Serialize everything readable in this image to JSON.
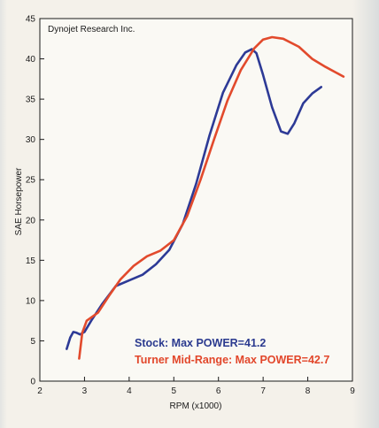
{
  "chart_data": {
    "type": "line",
    "title": "",
    "watermark": "Dynojet Research Inc.",
    "xlabel": "RPM (x1000)",
    "ylabel": "SAE Horsepower",
    "xlim": [
      2,
      9
    ],
    "ylim": [
      0,
      45
    ],
    "x_ticks": [
      2,
      3,
      4,
      5,
      6,
      7,
      8,
      9
    ],
    "y_ticks": [
      0,
      5,
      10,
      15,
      20,
      25,
      30,
      35,
      40,
      45
    ],
    "grid": false,
    "series": [
      {
        "name": "Stock",
        "color": "#2d3a96",
        "points": [
          [
            2.6,
            4.0
          ],
          [
            2.68,
            5.4
          ],
          [
            2.75,
            6.1
          ],
          [
            2.82,
            6.0
          ],
          [
            2.9,
            5.8
          ],
          [
            3.0,
            6.1
          ],
          [
            3.15,
            7.5
          ],
          [
            3.4,
            9.6
          ],
          [
            3.7,
            11.8
          ],
          [
            4.0,
            12.5
          ],
          [
            4.3,
            13.2
          ],
          [
            4.6,
            14.5
          ],
          [
            4.9,
            16.3
          ],
          [
            5.2,
            19.5
          ],
          [
            5.5,
            24.5
          ],
          [
            5.8,
            30.5
          ],
          [
            6.1,
            35.8
          ],
          [
            6.4,
            39.2
          ],
          [
            6.6,
            40.8
          ],
          [
            6.75,
            41.2
          ],
          [
            6.85,
            40.7
          ],
          [
            7.0,
            38.0
          ],
          [
            7.2,
            34.0
          ],
          [
            7.4,
            31.0
          ],
          [
            7.55,
            30.7
          ],
          [
            7.7,
            32.0
          ],
          [
            7.9,
            34.5
          ],
          [
            8.1,
            35.7
          ],
          [
            8.3,
            36.5
          ]
        ]
      },
      {
        "name": "Turner Mid-Range",
        "color": "#e24a2c",
        "points": [
          [
            2.88,
            2.8
          ],
          [
            2.95,
            6.0
          ],
          [
            3.05,
            7.5
          ],
          [
            3.3,
            8.5
          ],
          [
            3.55,
            10.6
          ],
          [
            3.8,
            12.6
          ],
          [
            4.1,
            14.3
          ],
          [
            4.4,
            15.5
          ],
          [
            4.7,
            16.2
          ],
          [
            5.0,
            17.5
          ],
          [
            5.3,
            20.5
          ],
          [
            5.6,
            25.0
          ],
          [
            5.9,
            30.0
          ],
          [
            6.2,
            34.8
          ],
          [
            6.5,
            38.6
          ],
          [
            6.8,
            41.3
          ],
          [
            7.0,
            42.4
          ],
          [
            7.2,
            42.7
          ],
          [
            7.45,
            42.5
          ],
          [
            7.8,
            41.5
          ],
          [
            8.1,
            40.0
          ],
          [
            8.4,
            39.0
          ],
          [
            8.8,
            37.8
          ]
        ]
      }
    ],
    "legend": {
      "placement": "bottom-left",
      "entries": [
        "Stock: Max POWER=41.2",
        "Turner Mid-Range: Max POWER=42.7"
      ]
    }
  }
}
